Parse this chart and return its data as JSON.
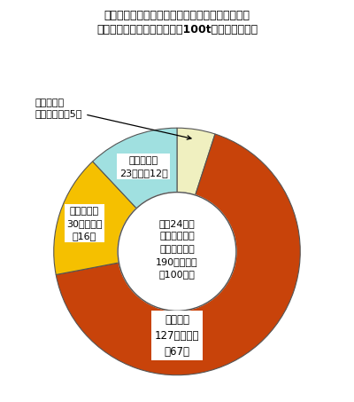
{
  "title_line1": "図　食品廃棄物等の年間発生量と業種別構成割合",
  "title_line2": "（食品廃棄物等の年間発生量100t未満の事業所）",
  "segments_cw": [
    {
      "label": "食品卸売業",
      "value": 5,
      "color": "#F0F0C0"
    },
    {
      "label": "外食産業",
      "value": 67,
      "color": "#C8430A"
    },
    {
      "label": "食品小売業",
      "value": 16,
      "color": "#F5C000"
    },
    {
      "label": "食品製造業",
      "value": 12,
      "color": "#A0E0E0"
    }
  ],
  "center_text": "平成24年度\n食品廃棄物等\nの年間発生量\n190万９千ｔ\n（100％）",
  "label_gaishoku": "外食産業\n127万９千ｔ\n（67）",
  "label_shokuhinsouri": "食品小売業\n30万８千ｔ\n（16）",
  "label_shokuhinseizou": "食品製造業\n23万ｔ（12）",
  "label_shokuhinoroshi": "食品卸売業\n９万２千ｔ（5）",
  "donut_width": 0.52,
  "inner_r": 0.48,
  "edge_color": "#555555",
  "background_color": "#FFFFFF",
  "fig_width": 4.0,
  "fig_height": 4.53,
  "dpi": 100
}
